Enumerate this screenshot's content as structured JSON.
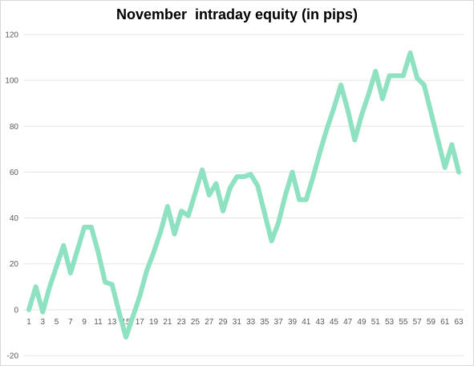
{
  "chart_data": {
    "type": "line",
    "title": "November  intraday equity (in pips)",
    "xlabel": "",
    "ylabel": "",
    "ylim": [
      -20,
      120
    ],
    "yticks": [
      -20,
      0,
      20,
      40,
      60,
      80,
      100,
      120
    ],
    "xticks": [
      1,
      3,
      5,
      7,
      9,
      11,
      13,
      15,
      17,
      19,
      21,
      23,
      25,
      27,
      29,
      31,
      33,
      35,
      37,
      39,
      41,
      43,
      45,
      47,
      49,
      51,
      53,
      55,
      57,
      59,
      61,
      63
    ],
    "grid": true,
    "legend": "none",
    "line_color": "#8ee2c2",
    "series": [
      {
        "x": [
          1,
          2,
          3,
          4,
          5,
          6,
          7,
          8,
          9,
          10,
          11,
          12,
          13,
          14,
          15,
          16,
          17,
          18,
          19,
          20,
          21,
          22,
          23,
          24,
          25,
          26,
          27,
          28,
          29,
          30,
          31,
          32,
          33,
          34,
          35,
          36,
          37,
          38,
          39,
          40,
          41,
          42,
          43,
          44,
          45,
          46,
          47,
          48,
          49,
          50,
          51,
          52,
          53,
          54,
          55,
          56,
          57,
          58,
          59,
          60,
          61,
          62,
          63
        ],
        "values": [
          0,
          10,
          -1,
          10,
          19,
          28,
          16,
          26,
          36,
          36,
          25,
          12,
          11,
          -1,
          -12,
          -3,
          6,
          17,
          25,
          34,
          45,
          33,
          43,
          41,
          51,
          61,
          50,
          55,
          43,
          53,
          58,
          58,
          59,
          54,
          42,
          30,
          38,
          50,
          60,
          48,
          48,
          58,
          69,
          79,
          88,
          98,
          87,
          74,
          85,
          94,
          104,
          92,
          102,
          102,
          102,
          112,
          101,
          98,
          86,
          74,
          62,
          72,
          60
        ]
      }
    ]
  }
}
